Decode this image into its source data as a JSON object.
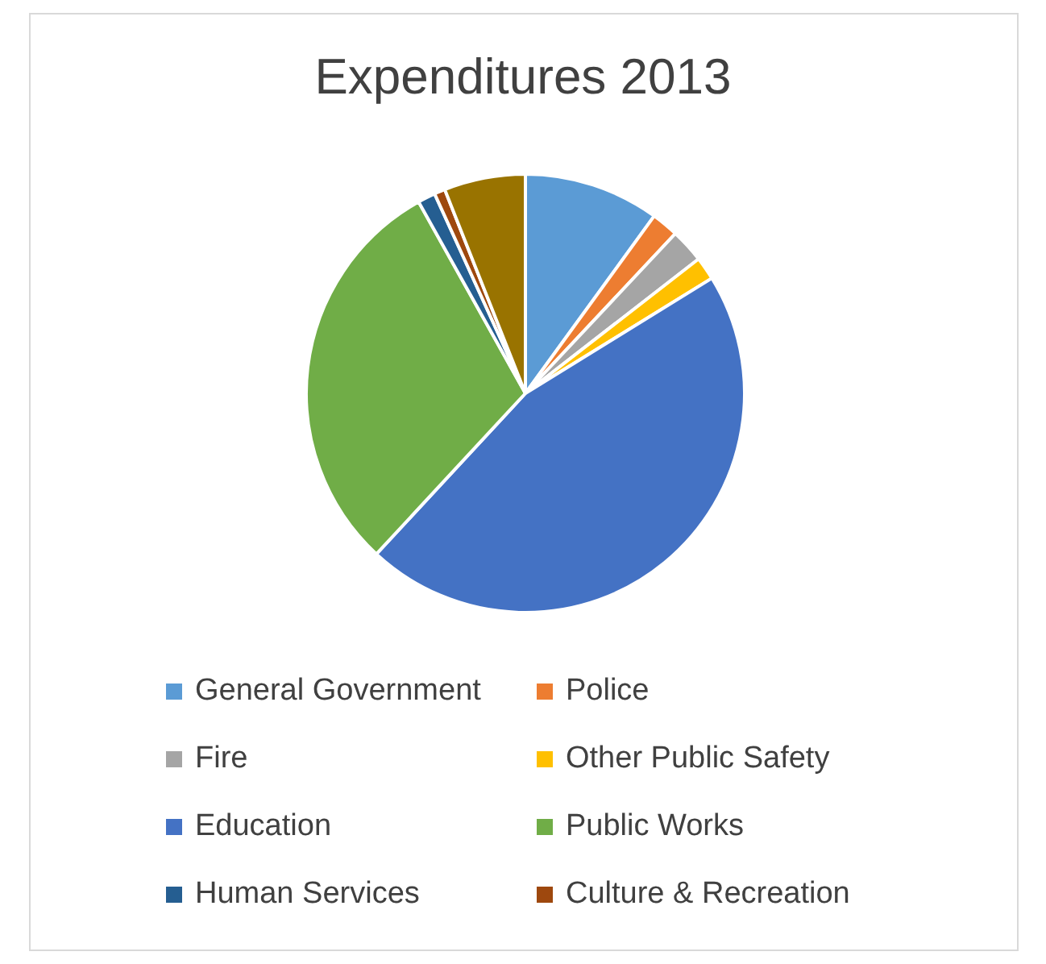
{
  "chart_data": {
    "type": "pie",
    "title": "Expenditures 2013",
    "categories": [
      "General Government",
      "Police",
      "Fire",
      "Other Public Safety",
      "Education",
      "Public Works",
      "Human Services",
      "Culture & Recreation",
      null
    ],
    "values": [
      10,
      2,
      2.5,
      1.7,
      45.7,
      30,
      1.3,
      0.8,
      6
    ],
    "colors": [
      "#5b9bd5",
      "#ed7d31",
      "#a5a5a5",
      "#ffc000",
      "#4472c4",
      "#70ad47",
      "#255e91",
      "#9e480e",
      "#997300"
    ],
    "legend": "bottom"
  }
}
